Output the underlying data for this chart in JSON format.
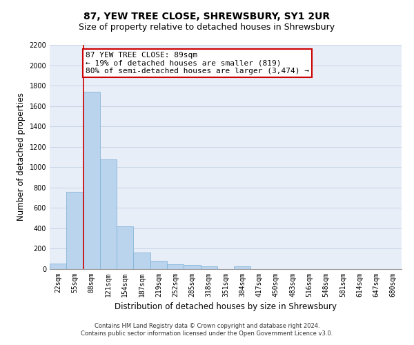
{
  "title": "87, YEW TREE CLOSE, SHREWSBURY, SY1 2UR",
  "subtitle": "Size of property relative to detached houses in Shrewsbury",
  "xlabel": "Distribution of detached houses by size in Shrewsbury",
  "ylabel": "Number of detached properties",
  "bar_labels": [
    "22sqm",
    "55sqm",
    "88sqm",
    "121sqm",
    "154sqm",
    "187sqm",
    "219sqm",
    "252sqm",
    "285sqm",
    "318sqm",
    "351sqm",
    "384sqm",
    "417sqm",
    "450sqm",
    "483sqm",
    "516sqm",
    "548sqm",
    "581sqm",
    "614sqm",
    "647sqm",
    "680sqm"
  ],
  "bar_values": [
    55,
    760,
    1740,
    1075,
    420,
    160,
    80,
    45,
    40,
    30,
    0,
    25,
    0,
    0,
    0,
    0,
    0,
    0,
    0,
    0,
    0
  ],
  "bar_color": "#bad4ed",
  "bar_edge_color": "#7aafd4",
  "grid_color": "#c8d4e8",
  "background_color": "#e8eef8",
  "ylim": [
    0,
    2200
  ],
  "yticks": [
    0,
    200,
    400,
    600,
    800,
    1000,
    1200,
    1400,
    1600,
    1800,
    2000,
    2200
  ],
  "property_line_x": 2,
  "annotation_text": "87 YEW TREE CLOSE: 89sqm\n← 19% of detached houses are smaller (819)\n80% of semi-detached houses are larger (3,474) →",
  "annotation_box_color": "#ffffff",
  "annotation_box_edge": "#cc0000",
  "footer_line1": "Contains HM Land Registry data © Crown copyright and database right 2024.",
  "footer_line2": "Contains public sector information licensed under the Open Government Licence v3.0.",
  "title_fontsize": 10,
  "subtitle_fontsize": 9,
  "tick_fontsize": 7,
  "ylabel_fontsize": 8.5,
  "xlabel_fontsize": 8.5,
  "annotation_fontsize": 8,
  "footer_fontsize": 6
}
